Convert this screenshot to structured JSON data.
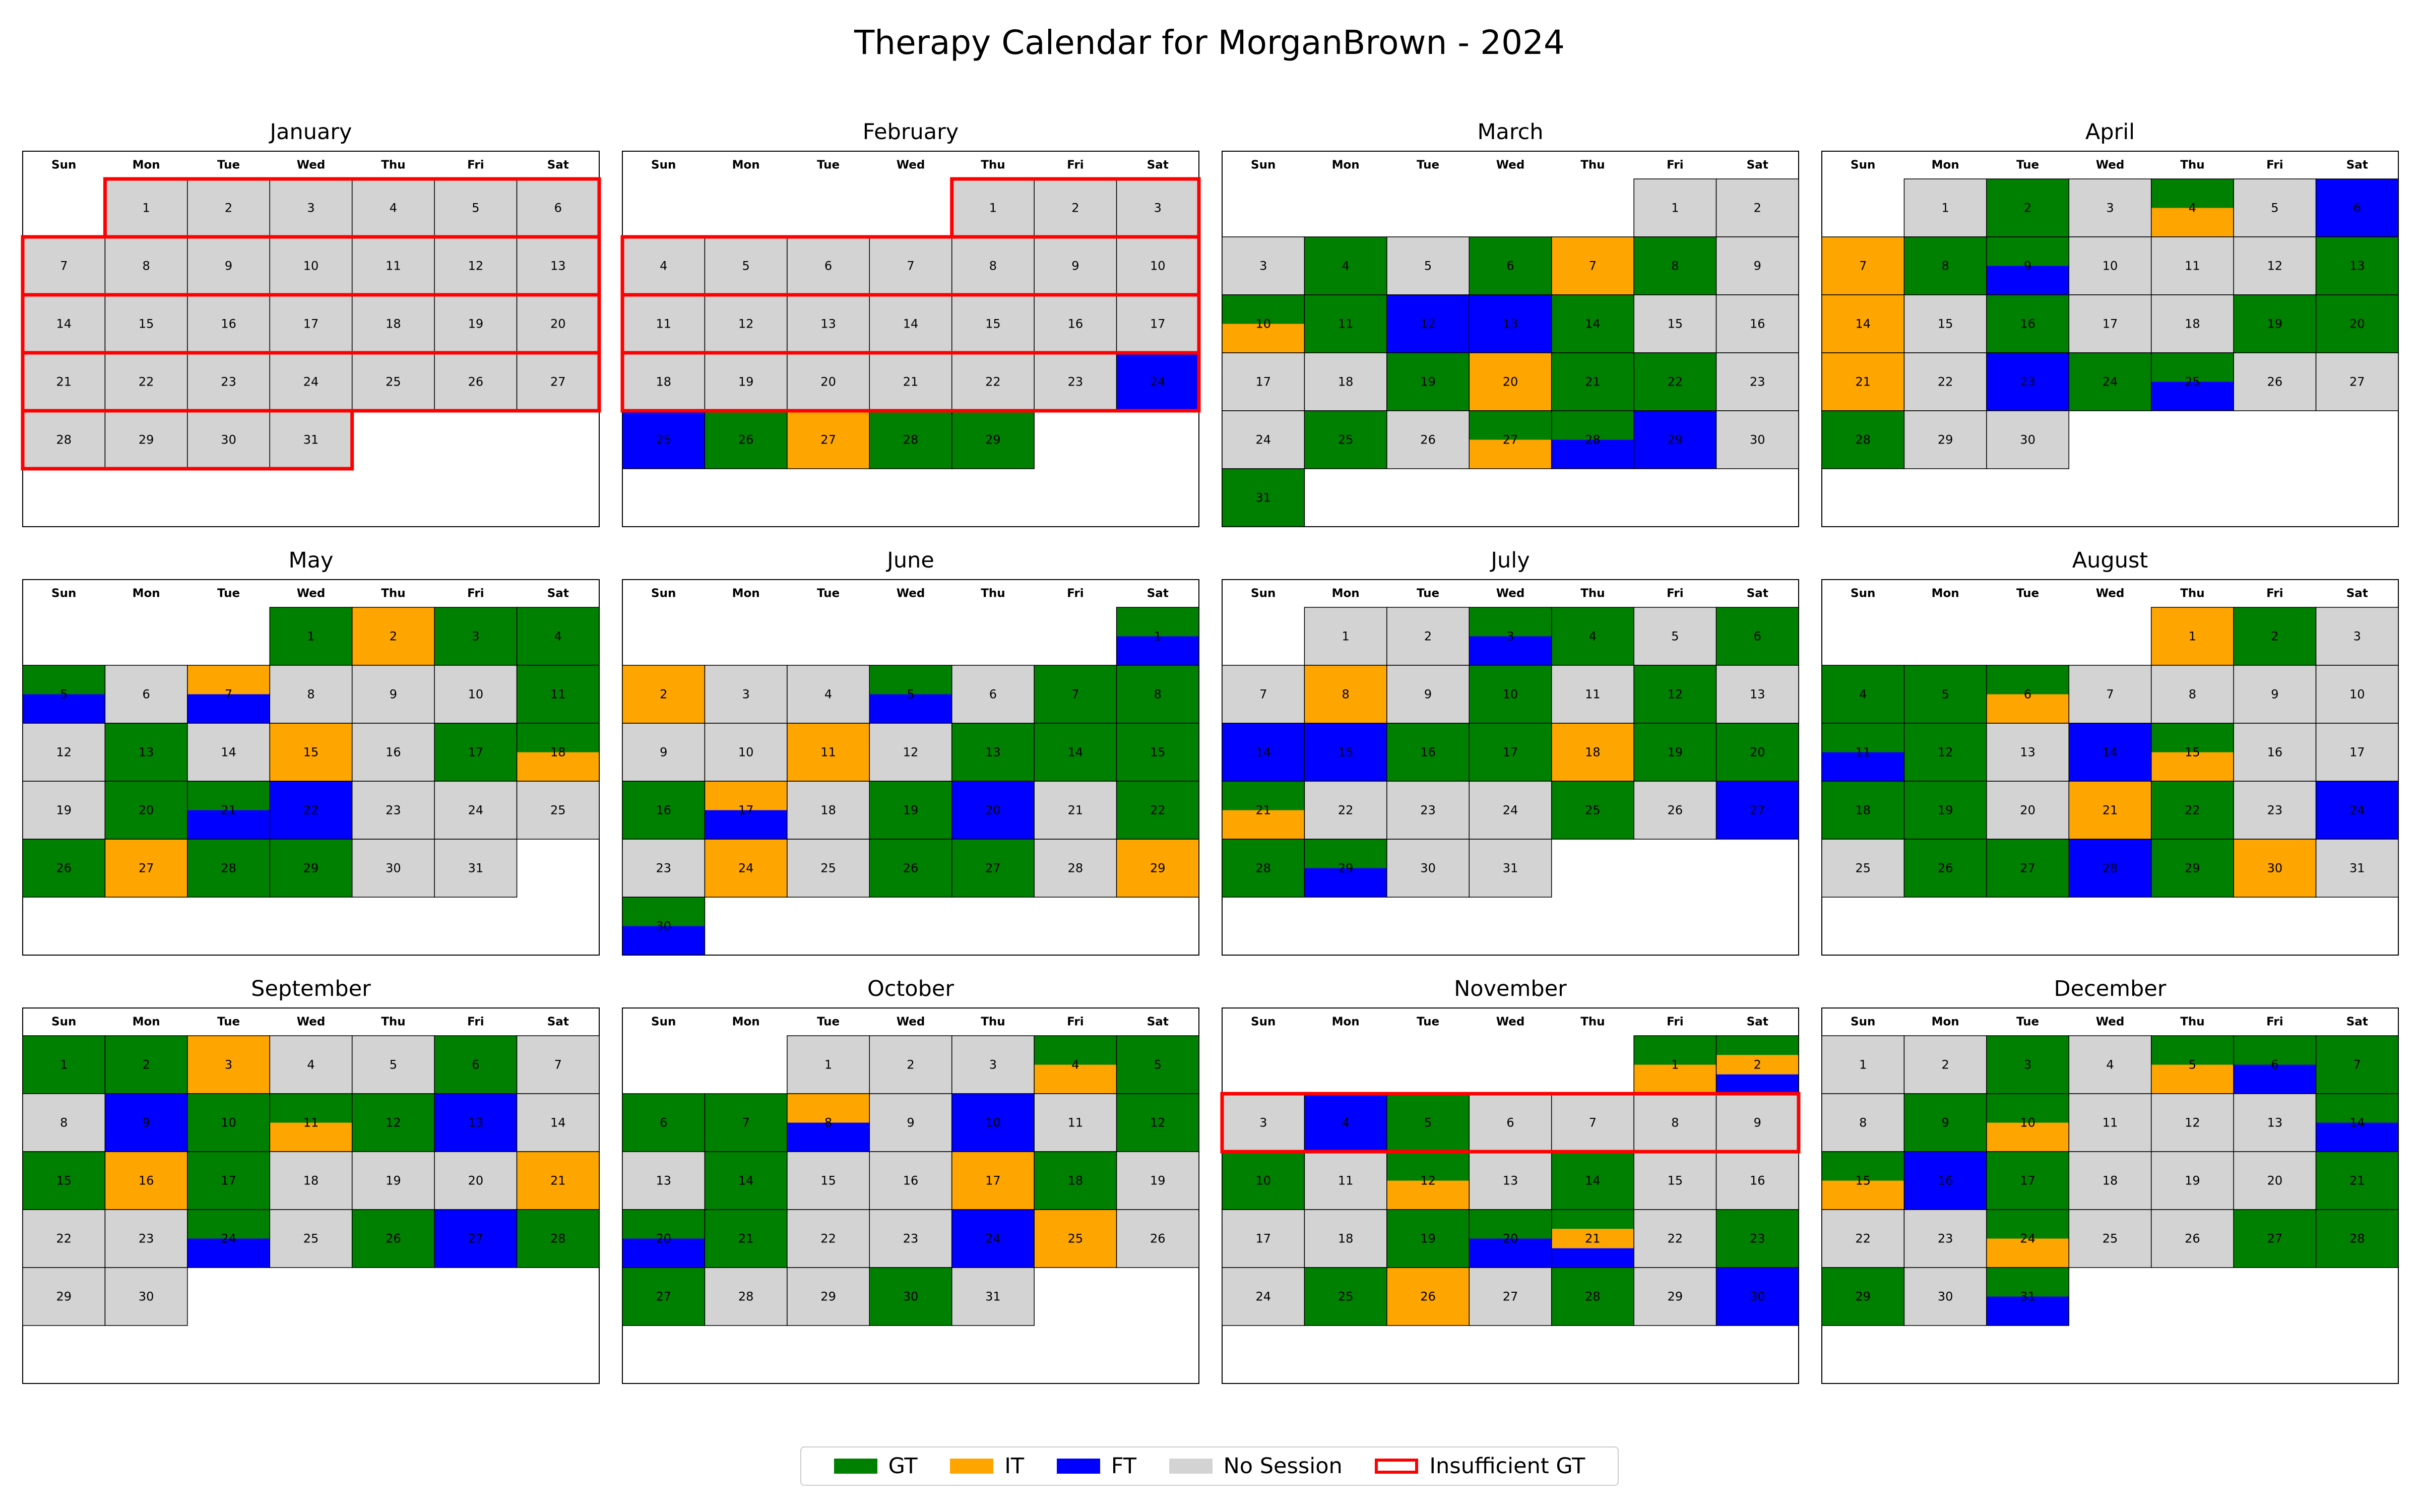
{
  "title": "Therapy Calendar for MorganBrown - 2024",
  "colors": {
    "GT": "#008000",
    "IT": "#FFA500",
    "FT": "#0000FF",
    "none": "#D3D3D3",
    "insufficient": "#FF0000"
  },
  "legend": [
    {
      "key": "GT",
      "label": "GT"
    },
    {
      "key": "IT",
      "label": "IT"
    },
    {
      "key": "FT",
      "label": "FT"
    },
    {
      "key": "none",
      "label": "No Session"
    },
    {
      "key": "insufficient",
      "label": "Insufficient GT"
    }
  ],
  "chart_data": {
    "type": "heatmap",
    "year": 2024,
    "weekdays": [
      "Sun",
      "Mon",
      "Tue",
      "Wed",
      "Thu",
      "Fri",
      "Sat"
    ],
    "months": [
      {
        "name": "January",
        "first_weekday": 1,
        "days": 31,
        "sessions": {},
        "insufficient_weeks": [
          0,
          1,
          2,
          3,
          4
        ]
      },
      {
        "name": "February",
        "first_weekday": 4,
        "days": 29,
        "sessions": {
          "24": [
            "FT"
          ],
          "25": [
            "FT"
          ],
          "26": [
            "GT"
          ],
          "27": [
            "IT"
          ],
          "28": [
            "GT"
          ],
          "29": [
            "GT"
          ]
        },
        "insufficient_weeks": [
          0,
          1,
          2,
          3
        ]
      },
      {
        "name": "March",
        "first_weekday": 5,
        "days": 31,
        "sessions": {
          "4": [
            "GT"
          ],
          "6": [
            "GT"
          ],
          "7": [
            "IT"
          ],
          "8": [
            "GT"
          ],
          "10": [
            "GT",
            "IT"
          ],
          "11": [
            "GT"
          ],
          "12": [
            "FT"
          ],
          "13": [
            "FT"
          ],
          "14": [
            "GT"
          ],
          "19": [
            "GT"
          ],
          "20": [
            "IT"
          ],
          "21": [
            "GT"
          ],
          "22": [
            "GT"
          ],
          "25": [
            "GT"
          ],
          "27": [
            "GT",
            "IT"
          ],
          "28": [
            "GT",
            "FT"
          ],
          "29": [
            "FT"
          ],
          "31": [
            "GT"
          ]
        },
        "insufficient_weeks": []
      },
      {
        "name": "April",
        "first_weekday": 1,
        "days": 30,
        "sessions": {
          "2": [
            "GT"
          ],
          "4": [
            "GT",
            "IT"
          ],
          "6": [
            "FT"
          ],
          "7": [
            "IT"
          ],
          "8": [
            "GT"
          ],
          "9": [
            "GT",
            "FT"
          ],
          "13": [
            "GT"
          ],
          "14": [
            "IT"
          ],
          "16": [
            "GT"
          ],
          "19": [
            "GT"
          ],
          "20": [
            "GT"
          ],
          "21": [
            "IT"
          ],
          "23": [
            "FT"
          ],
          "24": [
            "GT"
          ],
          "25": [
            "GT",
            "FT"
          ],
          "28": [
            "GT"
          ]
        },
        "insufficient_weeks": []
      },
      {
        "name": "May",
        "first_weekday": 3,
        "days": 31,
        "sessions": {
          "1": [
            "GT"
          ],
          "2": [
            "IT"
          ],
          "3": [
            "GT"
          ],
          "4": [
            "GT"
          ],
          "5": [
            "GT",
            "FT"
          ],
          "7": [
            "IT",
            "FT"
          ],
          "11": [
            "GT"
          ],
          "13": [
            "GT"
          ],
          "15": [
            "IT"
          ],
          "17": [
            "GT"
          ],
          "18": [
            "GT",
            "IT"
          ],
          "20": [
            "GT"
          ],
          "21": [
            "GT",
            "FT"
          ],
          "22": [
            "FT"
          ],
          "26": [
            "GT"
          ],
          "27": [
            "IT"
          ],
          "28": [
            "GT"
          ],
          "29": [
            "GT"
          ]
        },
        "insufficient_weeks": []
      },
      {
        "name": "June",
        "first_weekday": 6,
        "days": 30,
        "sessions": {
          "1": [
            "GT",
            "FT"
          ],
          "2": [
            "IT"
          ],
          "5": [
            "GT",
            "FT"
          ],
          "7": [
            "GT"
          ],
          "8": [
            "GT"
          ],
          "11": [
            "IT"
          ],
          "13": [
            "GT"
          ],
          "14": [
            "GT"
          ],
          "15": [
            "GT"
          ],
          "16": [
            "GT"
          ],
          "17": [
            "IT",
            "FT"
          ],
          "19": [
            "GT"
          ],
          "20": [
            "FT"
          ],
          "22": [
            "GT"
          ],
          "24": [
            "IT"
          ],
          "26": [
            "GT"
          ],
          "27": [
            "GT"
          ],
          "29": [
            "IT"
          ],
          "30": [
            "GT",
            "FT"
          ]
        },
        "insufficient_weeks": []
      },
      {
        "name": "July",
        "first_weekday": 1,
        "days": 31,
        "sessions": {
          "3": [
            "GT",
            "FT"
          ],
          "4": [
            "GT"
          ],
          "6": [
            "GT"
          ],
          "8": [
            "IT"
          ],
          "10": [
            "GT"
          ],
          "12": [
            "GT"
          ],
          "14": [
            "FT"
          ],
          "15": [
            "FT"
          ],
          "16": [
            "GT"
          ],
          "17": [
            "GT"
          ],
          "18": [
            "IT"
          ],
          "19": [
            "GT"
          ],
          "20": [
            "GT"
          ],
          "21": [
            "GT",
            "IT"
          ],
          "25": [
            "GT"
          ],
          "27": [
            "FT"
          ],
          "28": [
            "GT"
          ],
          "29": [
            "GT",
            "FT"
          ]
        },
        "insufficient_weeks": []
      },
      {
        "name": "August",
        "first_weekday": 4,
        "days": 31,
        "sessions": {
          "1": [
            "IT"
          ],
          "2": [
            "GT"
          ],
          "4": [
            "GT"
          ],
          "5": [
            "GT"
          ],
          "6": [
            "GT",
            "IT"
          ],
          "11": [
            "GT",
            "FT"
          ],
          "12": [
            "GT"
          ],
          "14": [
            "FT"
          ],
          "15": [
            "GT",
            "IT"
          ],
          "18": [
            "GT"
          ],
          "19": [
            "GT"
          ],
          "21": [
            "IT"
          ],
          "22": [
            "GT"
          ],
          "24": [
            "FT"
          ],
          "26": [
            "GT"
          ],
          "27": [
            "GT"
          ],
          "28": [
            "FT"
          ],
          "29": [
            "GT"
          ],
          "30": [
            "IT"
          ]
        },
        "insufficient_weeks": []
      },
      {
        "name": "September",
        "first_weekday": 0,
        "days": 30,
        "sessions": {
          "1": [
            "GT"
          ],
          "2": [
            "GT"
          ],
          "3": [
            "IT"
          ],
          "6": [
            "GT"
          ],
          "9": [
            "FT"
          ],
          "10": [
            "GT"
          ],
          "11": [
            "GT",
            "IT"
          ],
          "12": [
            "GT"
          ],
          "13": [
            "FT"
          ],
          "15": [
            "GT"
          ],
          "16": [
            "IT"
          ],
          "17": [
            "GT"
          ],
          "21": [
            "IT"
          ],
          "24": [
            "GT",
            "FT"
          ],
          "26": [
            "GT"
          ],
          "27": [
            "FT"
          ],
          "28": [
            "GT"
          ]
        },
        "insufficient_weeks": []
      },
      {
        "name": "October",
        "first_weekday": 2,
        "days": 31,
        "sessions": {
          "4": [
            "GT",
            "IT"
          ],
          "5": [
            "GT"
          ],
          "6": [
            "GT"
          ],
          "7": [
            "GT"
          ],
          "8": [
            "IT",
            "FT"
          ],
          "10": [
            "FT"
          ],
          "12": [
            "GT"
          ],
          "14": [
            "GT"
          ],
          "17": [
            "IT"
          ],
          "18": [
            "GT"
          ],
          "20": [
            "GT",
            "FT"
          ],
          "21": [
            "GT"
          ],
          "24": [
            "FT"
          ],
          "25": [
            "IT"
          ],
          "27": [
            "GT"
          ],
          "30": [
            "GT"
          ]
        },
        "insufficient_weeks": []
      },
      {
        "name": "November",
        "first_weekday": 5,
        "days": 30,
        "sessions": {
          "1": [
            "GT",
            "IT"
          ],
          "2": [
            "GT",
            "IT",
            "FT"
          ],
          "4": [
            "FT"
          ],
          "5": [
            "GT"
          ],
          "10": [
            "GT"
          ],
          "12": [
            "GT",
            "IT"
          ],
          "14": [
            "GT"
          ],
          "19": [
            "GT"
          ],
          "20": [
            "GT",
            "FT"
          ],
          "21": [
            "GT",
            "IT",
            "FT"
          ],
          "23": [
            "GT"
          ],
          "25": [
            "GT"
          ],
          "26": [
            "IT"
          ],
          "28": [
            "GT"
          ],
          "30": [
            "FT"
          ]
        },
        "insufficient_weeks": [
          1
        ]
      },
      {
        "name": "December",
        "first_weekday": 0,
        "days": 31,
        "sessions": {
          "3": [
            "GT"
          ],
          "5": [
            "GT",
            "IT"
          ],
          "6": [
            "GT",
            "FT"
          ],
          "7": [
            "GT"
          ],
          "9": [
            "GT"
          ],
          "10": [
            "GT",
            "IT"
          ],
          "14": [
            "GT",
            "FT"
          ],
          "15": [
            "GT",
            "IT"
          ],
          "16": [
            "FT"
          ],
          "17": [
            "GT"
          ],
          "21": [
            "GT"
          ],
          "24": [
            "GT",
            "IT"
          ],
          "27": [
            "GT"
          ],
          "28": [
            "GT"
          ],
          "29": [
            "GT"
          ],
          "31": [
            "GT",
            "FT"
          ]
        },
        "insufficient_weeks": []
      }
    ]
  }
}
